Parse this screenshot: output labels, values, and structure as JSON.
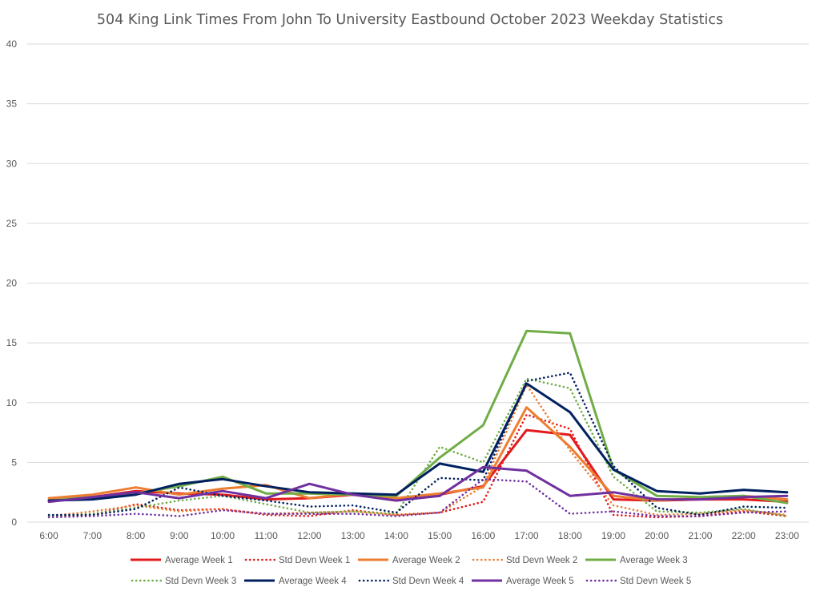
{
  "chart_data": {
    "type": "line",
    "title": "504 King Link Times From John To University Eastbound October 2023 Weekday Statistics",
    "xlabel": "",
    "ylabel": "",
    "ylim": [
      0,
      40
    ],
    "yticks": [
      "0",
      "5",
      "10",
      "15",
      "20",
      "25",
      "30",
      "35",
      "40"
    ],
    "grid": true,
    "legend_position": "bottom",
    "x": [
      "6:00",
      "7:00",
      "8:00",
      "9:00",
      "10:00",
      "11:00",
      "12:00",
      "13:00",
      "14:00",
      "15:00",
      "16:00",
      "17:00",
      "18:00",
      "19:00",
      "20:00",
      "21:00",
      "22:00",
      "23:00"
    ],
    "series": [
      {
        "name": "Average Week 1",
        "color": "#e31a1c",
        "dash": "solid",
        "values": [
          1.8,
          2.1,
          2.6,
          2.4,
          2.3,
          1.9,
          2.0,
          2.3,
          1.9,
          2.3,
          3.0,
          7.7,
          7.3,
          1.9,
          1.8,
          1.9,
          1.9,
          1.7
        ]
      },
      {
        "name": "Std Devn Week 1",
        "color": "#e31a1c",
        "dash": "dotted",
        "values": [
          0.5,
          0.6,
          1.5,
          1.0,
          1.1,
          0.6,
          0.5,
          1.0,
          0.6,
          0.8,
          1.7,
          9.0,
          7.8,
          0.6,
          0.4,
          0.5,
          0.9,
          0.5
        ]
      },
      {
        "name": "Average Week 2",
        "color": "#ed7d31",
        "dash": "solid",
        "values": [
          2.0,
          2.3,
          2.9,
          2.3,
          2.8,
          3.1,
          2.0,
          2.4,
          2.0,
          2.4,
          2.9,
          9.6,
          6.3,
          2.2,
          1.8,
          2.0,
          2.2,
          1.9
        ]
      },
      {
        "name": "Std Devn Week 2",
        "color": "#ed7d31",
        "dash": "dotted",
        "values": [
          0.5,
          0.9,
          1.4,
          0.9,
          1.1,
          0.7,
          0.8,
          0.9,
          0.6,
          0.8,
          3.0,
          11.5,
          6.0,
          1.4,
          0.6,
          0.7,
          1.0,
          0.6
        ]
      },
      {
        "name": "Average Week 3",
        "color": "#70ad47",
        "dash": "solid",
        "values": [
          1.8,
          2.1,
          2.4,
          3.0,
          3.8,
          2.4,
          2.4,
          2.3,
          2.2,
          5.4,
          8.1,
          16.0,
          15.8,
          4.4,
          2.2,
          2.1,
          2.2,
          1.6
        ]
      },
      {
        "name": "Std Devn Week 3",
        "color": "#70ad47",
        "dash": "dotted",
        "values": [
          0.5,
          0.7,
          1.2,
          1.8,
          2.2,
          1.5,
          0.8,
          0.9,
          0.7,
          6.3,
          5.0,
          12.0,
          11.2,
          3.8,
          0.9,
          0.8,
          1.1,
          0.5
        ]
      },
      {
        "name": "Average Week 4",
        "color": "#002060",
        "dash": "solid",
        "values": [
          1.8,
          1.9,
          2.3,
          3.2,
          3.6,
          3.0,
          2.5,
          2.4,
          2.3,
          4.9,
          4.2,
          11.6,
          9.2,
          4.4,
          2.6,
          2.4,
          2.7,
          2.5
        ]
      },
      {
        "name": "Std Devn Week 4",
        "color": "#002060",
        "dash": "dotted",
        "values": [
          0.6,
          0.6,
          1.1,
          2.9,
          2.2,
          1.8,
          1.3,
          1.4,
          0.8,
          3.7,
          3.5,
          11.8,
          12.5,
          4.7,
          1.2,
          0.6,
          1.3,
          1.2
        ]
      },
      {
        "name": "Average Week 5",
        "color": "#7030a0",
        "dash": "solid",
        "values": [
          1.7,
          2.1,
          2.5,
          2.0,
          2.6,
          2.0,
          3.2,
          2.3,
          1.8,
          2.2,
          4.6,
          4.3,
          2.2,
          2.5,
          1.9,
          1.9,
          2.1,
          2.2
        ]
      },
      {
        "name": "Std Devn Week 5",
        "color": "#7030a0",
        "dash": "dotted",
        "values": [
          0.4,
          0.5,
          0.7,
          0.5,
          1.0,
          0.7,
          0.7,
          0.7,
          0.5,
          0.8,
          3.6,
          3.4,
          0.7,
          0.9,
          0.5,
          0.5,
          0.8,
          0.9
        ]
      }
    ]
  }
}
